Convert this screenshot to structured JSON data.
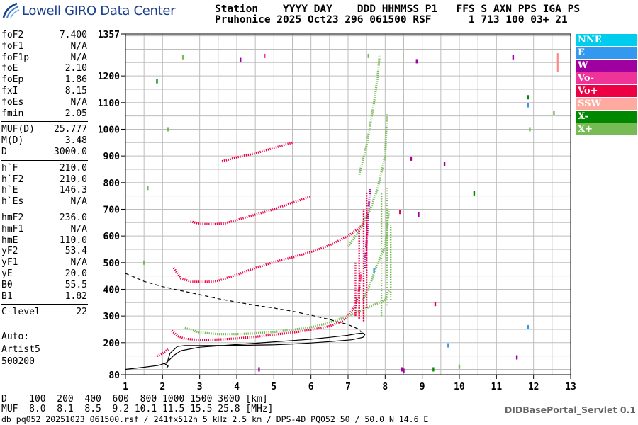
{
  "app": {
    "title": "Lowell GIRO Data Center",
    "logo_icon": "lowell-giro-swoosh-icon"
  },
  "header": {
    "line1": "Station    YYYY DAY    DDD HHMMSS P1   FFS S AXN PPS IGA PS",
    "line2": "Pruhonice 2025 Oct23 296 061500 RSF      1 713 100 03+ 21"
  },
  "params": [
    [
      {
        "name": "foF2",
        "value": "7.400"
      },
      {
        "name": "foF1",
        "value": "N/A"
      },
      {
        "name": "foF1p",
        "value": "N/A"
      },
      {
        "name": "foE",
        "value": "2.10"
      },
      {
        "name": "foEp",
        "value": "1.86"
      },
      {
        "name": "fxI",
        "value": "8.15"
      },
      {
        "name": "foEs",
        "value": "N/A"
      },
      {
        "name": "fmin",
        "value": "2.05"
      }
    ],
    [
      {
        "name": "MUF(D)",
        "value": "25.777"
      },
      {
        "name": "M(D)",
        "value": "3.48"
      },
      {
        "name": "D",
        "value": "3000.0"
      }
    ],
    [
      {
        "name": "h`F",
        "value": "210.0"
      },
      {
        "name": "h`F2",
        "value": "210.0"
      },
      {
        "name": "h`E",
        "value": "146.3"
      },
      {
        "name": "h`Es",
        "value": "N/A"
      }
    ],
    [
      {
        "name": "hmF2",
        "value": "236.0"
      },
      {
        "name": "hmF1",
        "value": "N/A"
      },
      {
        "name": "hmE",
        "value": "110.0"
      },
      {
        "name": "yF2",
        "value": "53.4"
      },
      {
        "name": "yF1",
        "value": "N/A"
      },
      {
        "name": "yE",
        "value": "20.0"
      },
      {
        "name": "B0",
        "value": "55.5"
      },
      {
        "name": "B1",
        "value": "1.82"
      }
    ],
    [
      {
        "name": "C-level",
        "value": "22"
      }
    ]
  ],
  "auto": {
    "line1": "Auto:",
    "line2": "Artist5",
    "line3": "500200"
  },
  "legend": [
    {
      "label": "NNE",
      "color": "#00ccee"
    },
    {
      "label": "E",
      "color": "#3399ee"
    },
    {
      "label": "W",
      "color": "#a000a0"
    },
    {
      "label": "Vo-",
      "color": "#ee3399"
    },
    {
      "label": "Vo+",
      "color": "#ee0044"
    },
    {
      "label": "SSW",
      "color": "#ffaaa0"
    },
    {
      "label": "X-",
      "color": "#008800"
    },
    {
      "label": "X+",
      "color": "#77bb55"
    }
  ],
  "bottom": {
    "d_line": "D    100  200  400  600  800 1000 1500 3000 [km]",
    "muf_line": "MUF  8.0  8.1  8.5  9.2 10.1 11.5 15.5 25.8 [MHz]",
    "servlet": "DIDBasePortal_Servlet 0.1",
    "footer": "db pq052 20251023 061500.rsf / 241fx512h 5 kHz 2.5 km / DPS-4D PQ052 50 / 50.0 N 14.6 E"
  },
  "chart_data": {
    "type": "scatter",
    "title": "",
    "xlabel": "",
    "ylabel": "",
    "xlim": [
      1,
      13
    ],
    "ylim": [
      80,
      1357
    ],
    "x_ticks": [
      1,
      2,
      3,
      4,
      5,
      6,
      7,
      8,
      9,
      10,
      11,
      12,
      13
    ],
    "y_ticks": [
      80,
      200,
      300,
      400,
      500,
      600,
      700,
      800,
      900,
      1000,
      1100,
      1200,
      1357
    ],
    "grid": true,
    "y_gridlines": [
      100,
      150,
      200,
      250,
      300,
      350,
      400,
      450,
      500,
      550,
      600,
      650,
      700,
      750,
      800,
      850,
      900,
      950,
      1000,
      1050,
      1100,
      1150,
      1200,
      1250,
      1300,
      1350
    ],
    "x_gridlines": [
      1,
      1.5,
      2,
      2.5,
      3,
      3.5,
      4,
      4.5,
      5,
      5.5,
      6,
      6.5,
      7,
      7.5,
      8,
      8.5,
      9,
      9.5,
      10,
      10.5,
      11,
      11.5,
      12,
      12.5,
      13
    ],
    "series": [
      {
        "kind": "traces",
        "color": "#ee0044",
        "segments": [
          [
            [
              2.25,
              245
            ],
            [
              2.4,
              225
            ],
            [
              2.6,
              215
            ],
            [
              3,
              210
            ],
            [
              3.5,
              212
            ],
            [
              4,
              216
            ],
            [
              4.5,
              222
            ],
            [
              5,
              230
            ],
            [
              5.5,
              238
            ],
            [
              6,
              248
            ],
            [
              6.5,
              262
            ],
            [
              6.8,
              278
            ],
            [
              7,
              300
            ],
            [
              7.2,
              340
            ],
            [
              7.3,
              400
            ],
            [
              7.35,
              470
            ]
          ],
          [
            [
              2.3,
              480
            ],
            [
              2.5,
              440
            ],
            [
              2.8,
              428
            ],
            [
              3.2,
              428
            ],
            [
              3.5,
              432
            ],
            [
              4,
              455
            ],
            [
              4.5,
              480
            ],
            [
              5,
              502
            ],
            [
              5.5,
              520
            ],
            [
              6,
              540
            ],
            [
              6.5,
              565
            ],
            [
              7,
              600
            ],
            [
              7.3,
              630
            ],
            [
              7.45,
              650
            ]
          ],
          [
            [
              2.75,
              655
            ],
            [
              3,
              645
            ],
            [
              3.4,
              644
            ],
            [
              3.7,
              648
            ],
            [
              4,
              660
            ],
            [
              4.5,
              680
            ],
            [
              5,
              700
            ],
            [
              5.5,
              725
            ],
            [
              6,
              748
            ]
          ],
          [
            [
              3.6,
              880
            ],
            [
              4,
              895
            ],
            [
              4.5,
              910
            ],
            [
              5,
              930
            ],
            [
              5.5,
              950
            ]
          ],
          [
            [
              1.85,
              150
            ],
            [
              2,
              160
            ],
            [
              2.15,
              175
            ]
          ]
        ]
      },
      {
        "kind": "traces",
        "color": "#77bb55",
        "segments": [
          [
            [
              2.6,
              255
            ],
            [
              3,
              238
            ],
            [
              3.5,
              232
            ],
            [
              4,
              232
            ],
            [
              4.5,
              235
            ],
            [
              5,
              240
            ],
            [
              5.5,
              248
            ],
            [
              6,
              258
            ],
            [
              6.5,
              275
            ],
            [
              7,
              300
            ],
            [
              7.5,
              330
            ],
            [
              8,
              360
            ],
            [
              8.1,
              395
            ]
          ],
          [
            [
              7.4,
              360
            ],
            [
              7.6,
              420
            ],
            [
              7.8,
              500
            ],
            [
              8,
              560
            ],
            [
              8.05,
              620
            ],
            [
              8.1,
              700
            ]
          ],
          [
            [
              7,
              560
            ],
            [
              7.3,
              620
            ],
            [
              7.6,
              700
            ],
            [
              7.8,
              780
            ],
            [
              8,
              900
            ],
            [
              8.05,
              1060
            ]
          ],
          [
            [
              7.3,
              830
            ],
            [
              7.5,
              940
            ],
            [
              7.7,
              1100
            ],
            [
              7.8,
              1200
            ],
            [
              7.85,
              1280
            ]
          ]
        ]
      },
      {
        "kind": "traces",
        "color": "#a000a0",
        "segments": [
          [
            [
              7.45,
              480
            ],
            [
              7.5,
              580
            ],
            [
              7.55,
              700
            ],
            [
              7.6,
              780
            ]
          ]
        ]
      }
    ],
    "o_trace": [
      [
        1,
        100
      ],
      [
        1.5,
        108
      ],
      [
        1.9,
        115
      ],
      [
        2.1,
        125
      ],
      [
        2.2,
        138
      ],
      [
        2.3,
        152
      ],
      [
        2.5,
        170
      ],
      [
        3,
        183
      ],
      [
        3.5,
        188
      ],
      [
        4,
        193
      ],
      [
        4.5,
        198
      ],
      [
        5,
        203
      ],
      [
        5.5,
        208
      ],
      [
        6,
        213
      ],
      [
        6.5,
        220
      ],
      [
        7,
        228
      ],
      [
        7.2,
        233
      ],
      [
        7.4,
        236
      ],
      [
        7.45,
        230
      ],
      [
        7.4,
        220
      ],
      [
        7.1,
        211
      ],
      [
        6.5,
        204
      ],
      [
        6,
        199
      ],
      [
        5.5,
        195
      ],
      [
        5,
        192
      ],
      [
        4,
        190
      ],
      [
        3,
        189
      ],
      [
        2.6,
        189
      ],
      [
        2.4,
        186
      ],
      [
        2.2,
        160
      ],
      [
        2.1,
        115
      ]
    ],
    "o_trace_inner": [
      [
        2.05,
        122
      ],
      [
        2.15,
        112
      ],
      [
        2.1,
        104
      ]
    ],
    "profile_dashed": [
      [
        1,
        460
      ],
      [
        1.5,
        430
      ],
      [
        2,
        410
      ],
      [
        2.5,
        395
      ],
      [
        3,
        380
      ],
      [
        3.5,
        365
      ],
      [
        4,
        352
      ],
      [
        4.5,
        340
      ],
      [
        5,
        330
      ],
      [
        5.5,
        318
      ],
      [
        6,
        303
      ],
      [
        6.5,
        287
      ],
      [
        7,
        268
      ],
      [
        7.3,
        250
      ],
      [
        7.35,
        240
      ]
    ],
    "scatter_points": [
      {
        "x": 2.55,
        "y": 1270,
        "color": "#77bb55"
      },
      {
        "x": 4.1,
        "y": 1260,
        "color": "#a000a0"
      },
      {
        "x": 4.75,
        "y": 1275,
        "color": "#ee3399"
      },
      {
        "x": 7.55,
        "y": 1275,
        "color": "#77bb55"
      },
      {
        "x": 8.85,
        "y": 1255,
        "color": "#a000a0"
      },
      {
        "x": 11.45,
        "y": 1270,
        "color": "#a000a0"
      },
      {
        "x": 1.85,
        "y": 1180,
        "color": "#008800"
      },
      {
        "x": 2.15,
        "y": 1000,
        "color": "#77bb55"
      },
      {
        "x": 8.7,
        "y": 890,
        "color": "#a000a0"
      },
      {
        "x": 9.6,
        "y": 870,
        "color": "#a000a0"
      },
      {
        "x": 10.4,
        "y": 760,
        "color": "#008800"
      },
      {
        "x": 11.85,
        "y": 1120,
        "color": "#008800"
      },
      {
        "x": 11.85,
        "y": 1090,
        "color": "#3399ee"
      },
      {
        "x": 12.55,
        "y": 1060,
        "color": "#77bb55"
      },
      {
        "x": 11.9,
        "y": 1000,
        "color": "#77bb55"
      },
      {
        "x": 8.45,
        "y": 100,
        "color": "#a000a0"
      },
      {
        "x": 8.5,
        "y": 95,
        "color": "#a000a0"
      },
      {
        "x": 9.3,
        "y": 100,
        "color": "#008800"
      },
      {
        "x": 9.35,
        "y": 345,
        "color": "#ee0044"
      },
      {
        "x": 11.55,
        "y": 145,
        "color": "#a000a0"
      },
      {
        "x": 11.85,
        "y": 258,
        "color": "#3399ee"
      },
      {
        "x": 10,
        "y": 110,
        "color": "#77bb55"
      },
      {
        "x": 4.6,
        "y": 100,
        "color": "#a000a0"
      },
      {
        "x": 9.7,
        "y": 190,
        "color": "#3399ee"
      },
      {
        "x": 1.5,
        "y": 500,
        "color": "#77bb55"
      },
      {
        "x": 1.6,
        "y": 780,
        "color": "#77bb55"
      },
      {
        "x": 7.7,
        "y": 470,
        "color": "#3399ee"
      },
      {
        "x": 8.9,
        "y": 680,
        "color": "#a000a0"
      },
      {
        "x": 8.4,
        "y": 690,
        "color": "#ee0044"
      }
    ],
    "salmon_bar": {
      "x": 12.65,
      "y_from": 1215,
      "y_to": 1285,
      "color": "#ff8888"
    }
  }
}
